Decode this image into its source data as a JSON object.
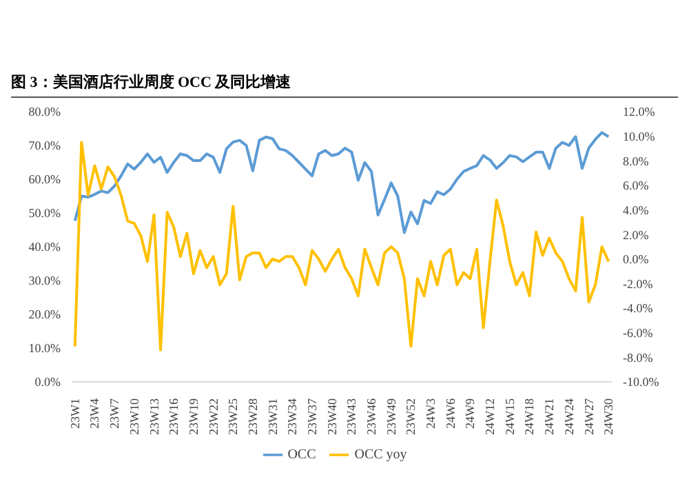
{
  "chart_data": {
    "type": "line",
    "title": "图 3：美国酒店行业周度 OCC 及同比增速",
    "categories": [
      "23W1",
      null,
      null,
      "23W4",
      null,
      null,
      "23W7",
      null,
      null,
      "23W10",
      null,
      null,
      "23W13",
      null,
      null,
      "23W16",
      null,
      null,
      "23W19",
      null,
      null,
      "23W22",
      null,
      null,
      "23W25",
      null,
      null,
      "23W28",
      null,
      null,
      "23W31",
      null,
      null,
      "23W34",
      null,
      null,
      "23W37",
      null,
      null,
      "23W40",
      null,
      null,
      "23W43",
      null,
      null,
      "23W46",
      null,
      null,
      "23W49",
      null,
      null,
      "23W52",
      null,
      null,
      "24W3",
      null,
      null,
      "24W6",
      null,
      null,
      "24W9",
      null,
      null,
      "24W12",
      null,
      null,
      "24W15",
      null,
      null,
      "24W18",
      null,
      null,
      "24W21",
      null,
      null,
      "24W24",
      null,
      null,
      "24W27",
      null,
      null,
      "24W30"
    ],
    "series": [
      {
        "name": "OCC",
        "color": "#5b9bd5",
        "values": [
          47.7,
          55,
          54.7,
          55.5,
          56.5,
          56,
          58,
          61,
          64.5,
          63,
          65,
          67.5,
          65,
          66.5,
          62,
          65,
          67.5,
          67,
          65.5,
          65.5,
          67.5,
          66.5,
          62,
          69,
          71,
          71.5,
          70,
          62.5,
          71.5,
          72.5,
          72,
          69,
          68.5,
          67,
          65,
          63,
          61,
          67.5,
          68.5,
          67,
          67.5,
          69.2,
          68,
          59.7,
          64.9,
          62.3,
          49.4,
          54,
          58.9,
          55,
          44.2,
          50.3,
          46.8,
          53.7,
          52.8,
          56.3,
          55.4,
          57.1,
          60,
          62.3,
          63.2,
          64,
          67,
          65.7,
          63.2,
          64.9,
          67,
          66.6,
          65.2,
          66.6,
          68,
          68,
          63.2,
          69.2,
          70.9,
          70,
          72.6,
          63.2,
          69.2,
          71.8,
          73.8,
          72.6
        ]
      },
      {
        "name": "OCC yoy",
        "color": "#ffc000",
        "axis": "y2",
        "values": [
          -7.1,
          9.5,
          5.2,
          7.6,
          5.7,
          7.5,
          6.7,
          5.2,
          3.1,
          2.9,
          1.9,
          -0.2,
          3.6,
          -7.4,
          3.8,
          2.6,
          0.2,
          2.1,
          -1.2,
          0.7,
          -0.7,
          0.2,
          -2.1,
          -1.2,
          4.3,
          -1.7,
          0.2,
          0.5,
          0.5,
          -0.7,
          0,
          -0.2,
          0.2,
          0.2,
          -0.7,
          -2.1,
          0.7,
          0,
          -1,
          0,
          0.8,
          -0.7,
          -1.6,
          -3.0,
          0.8,
          -0.7,
          -2.1,
          0.5,
          1.0,
          0.5,
          -1.6,
          -7.1,
          -1.6,
          -3.0,
          -0.2,
          -2.1,
          0.3,
          0.8,
          -2.1,
          -1.1,
          -1.6,
          0.8,
          -5.6,
          -0.2,
          4.8,
          2.7,
          -0.2,
          -2.1,
          -1.1,
          -3.0,
          2.2,
          0.3,
          1.7,
          0.5,
          -0.2,
          -1.6,
          -2.6,
          3.4,
          -3.5,
          -2.1,
          1.0,
          -0.2
        ]
      }
    ],
    "ylim": [
      0,
      80
    ],
    "yticks": [
      {
        "value": 0,
        "label": "0.0%"
      },
      {
        "value": 10,
        "label": "10.0%"
      },
      {
        "value": 20,
        "label": "20.0%"
      },
      {
        "value": 30,
        "label": "30.0%"
      },
      {
        "value": 40,
        "label": "40.0%"
      },
      {
        "value": 50,
        "label": "50.0%"
      },
      {
        "value": 60,
        "label": "60.0%"
      },
      {
        "value": 70,
        "label": "70.0%"
      },
      {
        "value": 80,
        "label": "80.0%"
      }
    ],
    "y2lim": [
      -10,
      12
    ],
    "y2ticks": [
      {
        "value": -10,
        "label": "-10.0%"
      },
      {
        "value": -8,
        "label": "-8.0%"
      },
      {
        "value": -6,
        "label": "-6.0%"
      },
      {
        "value": -4,
        "label": "-4.0%"
      },
      {
        "value": -2,
        "label": "-2.0%"
      },
      {
        "value": 0,
        "label": "0.0%"
      },
      {
        "value": 2,
        "label": "2.0%"
      },
      {
        "value": 4,
        "label": "4.0%"
      },
      {
        "value": 6,
        "label": "6.0%"
      },
      {
        "value": 8,
        "label": "8.0%"
      },
      {
        "value": 10,
        "label": "10.0%"
      },
      {
        "value": 12,
        "label": "12.0%"
      }
    ],
    "grid": false,
    "legend": "bottom",
    "marker": "none",
    "line_style": "solid"
  }
}
